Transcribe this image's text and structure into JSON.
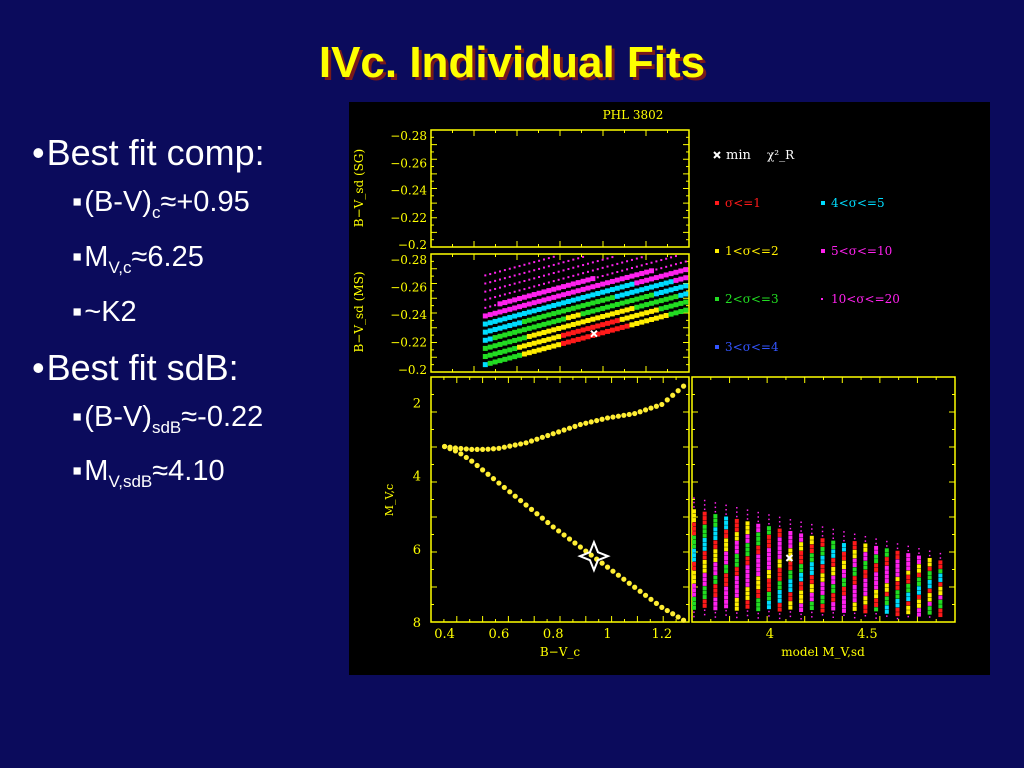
{
  "slide_title": "IVc. Individual Fits",
  "bullets": {
    "comp_heading": "Best fit comp:",
    "comp_items": [
      {
        "pre": "(B-V)",
        "sub": "c",
        "post": "≈+0.95"
      },
      {
        "pre": "M",
        "sub": "V,c",
        "post": "≈6.25"
      },
      {
        "pre": "~K2",
        "sub": "",
        "post": ""
      }
    ],
    "sdb_heading": "Best fit sdB:",
    "sdb_items": [
      {
        "pre": "(B-V)",
        "sub": "sdB",
        "post": "≈-0.22"
      },
      {
        "pre": "M",
        "sub": "V,sdB",
        "post": "≈4.10"
      }
    ]
  },
  "colors": {
    "background": "#0b0b5c",
    "title": "#ffff00",
    "title_shadow": "#7a1a1a",
    "frame": "#ffff00",
    "s1": "#ff1a1a",
    "s2": "#ffee00",
    "s3": "#22dd22",
    "s4": "#00ddff",
    "s5": "#ff22ee",
    "s6": "#ff22ee",
    "s7": "#3355ff"
  },
  "chart_data": [
    {
      "panel": "top-left",
      "type": "scatter",
      "title": "PHL 3802",
      "ylabel": "B−V_sd (SG)",
      "ylim": [
        -0.28,
        -0.2
      ],
      "yticks": [
        "−0.28",
        "−0.26",
        "−0.24",
        "−0.22",
        "−0.2"
      ],
      "series": []
    },
    {
      "panel": "middle-left",
      "type": "heatmap",
      "ylabel": "B−V_sd (MS)",
      "ylim": [
        -0.28,
        -0.2
      ],
      "xlim": [
        0.35,
        1.3
      ],
      "yticks": [
        "−0.28",
        "−0.26",
        "−0.24",
        "−0.22",
        "−0.2"
      ],
      "best_fit": {
        "x": 0.95,
        "y": -0.226
      },
      "legend": {
        "min_label": "min",
        "chi_label": "χ²_R",
        "entries": [
          {
            "key": "s1",
            "label": "σ<=1"
          },
          {
            "key": "s4",
            "label": "4<σ<=5"
          },
          {
            "key": "s2",
            "label": "1<σ<=2"
          },
          {
            "key": "s5",
            "label": "5<σ<=10"
          },
          {
            "key": "s3",
            "label": "2<σ<=3"
          },
          {
            "key": "s6",
            "label": "10<σ<=20"
          },
          {
            "key": "s7",
            "label": "3<σ<=4"
          }
        ]
      }
    },
    {
      "panel": "bottom-left",
      "type": "line",
      "xlabel": "B−V_c",
      "ylabel": "M_V,c",
      "xlim": [
        0.35,
        1.3
      ],
      "ylim": [
        8.0,
        1.3
      ],
      "xticks": [
        "0.4",
        "0.6",
        "0.8",
        "1",
        "1.2"
      ],
      "yticks": [
        "2",
        "4",
        "6",
        "8"
      ],
      "series": [
        {
          "x": [
            0.4,
            0.45,
            0.5,
            0.55,
            0.6,
            0.7,
            0.8,
            0.9,
            1.0,
            1.1,
            1.2,
            1.28
          ],
          "y": [
            3.2,
            3.25,
            3.28,
            3.28,
            3.25,
            3.1,
            2.85,
            2.6,
            2.42,
            2.3,
            2.05,
            1.55
          ]
        },
        {
          "x": [
            0.4,
            0.45,
            0.5,
            0.55,
            0.6,
            0.7,
            0.8,
            0.9,
            1.0,
            1.1,
            1.2,
            1.28
          ],
          "y": [
            3.2,
            3.35,
            3.6,
            3.9,
            4.2,
            4.8,
            5.4,
            5.95,
            6.5,
            7.05,
            7.6,
            7.95
          ]
        }
      ],
      "best_fit": {
        "x": 0.95,
        "y": 6.2
      }
    },
    {
      "panel": "bottom-right",
      "type": "scatter",
      "xlabel": "model M_V,sd",
      "xlim": [
        3.6,
        4.95
      ],
      "xticks": [
        "4",
        "4.5"
      ],
      "best_fit": {
        "x": 4.1,
        "y": 6.25
      }
    }
  ]
}
